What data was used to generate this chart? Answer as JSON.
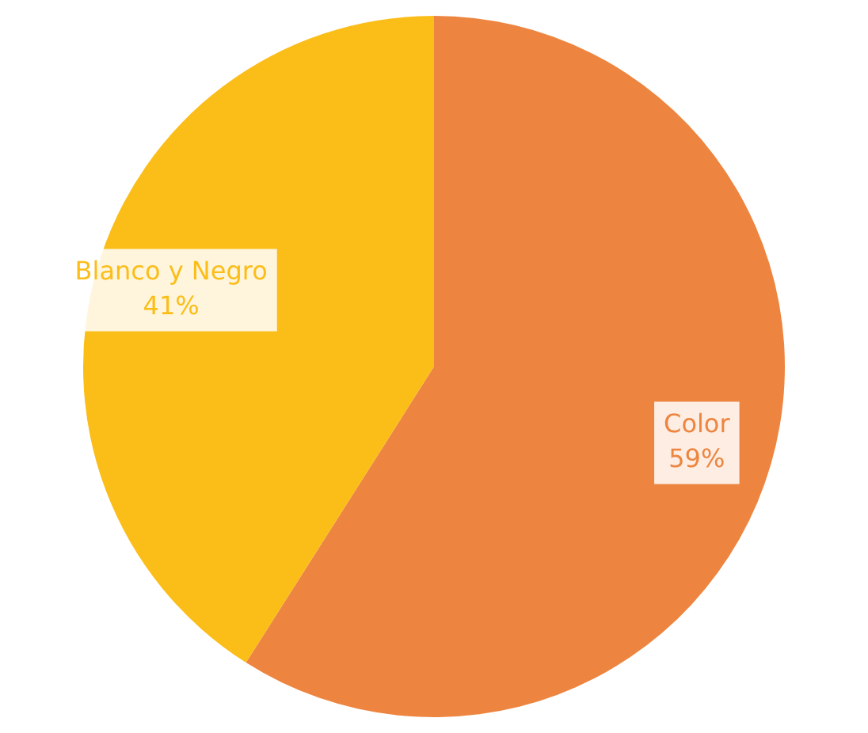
{
  "chart_data": {
    "type": "pie",
    "categories": [
      "Color",
      "Blanco y Negro"
    ],
    "values": [
      59,
      41
    ],
    "colors": [
      "#ed8540",
      "#fbbd18"
    ],
    "value_labels": [
      "59%",
      "41%"
    ],
    "legend": false
  }
}
